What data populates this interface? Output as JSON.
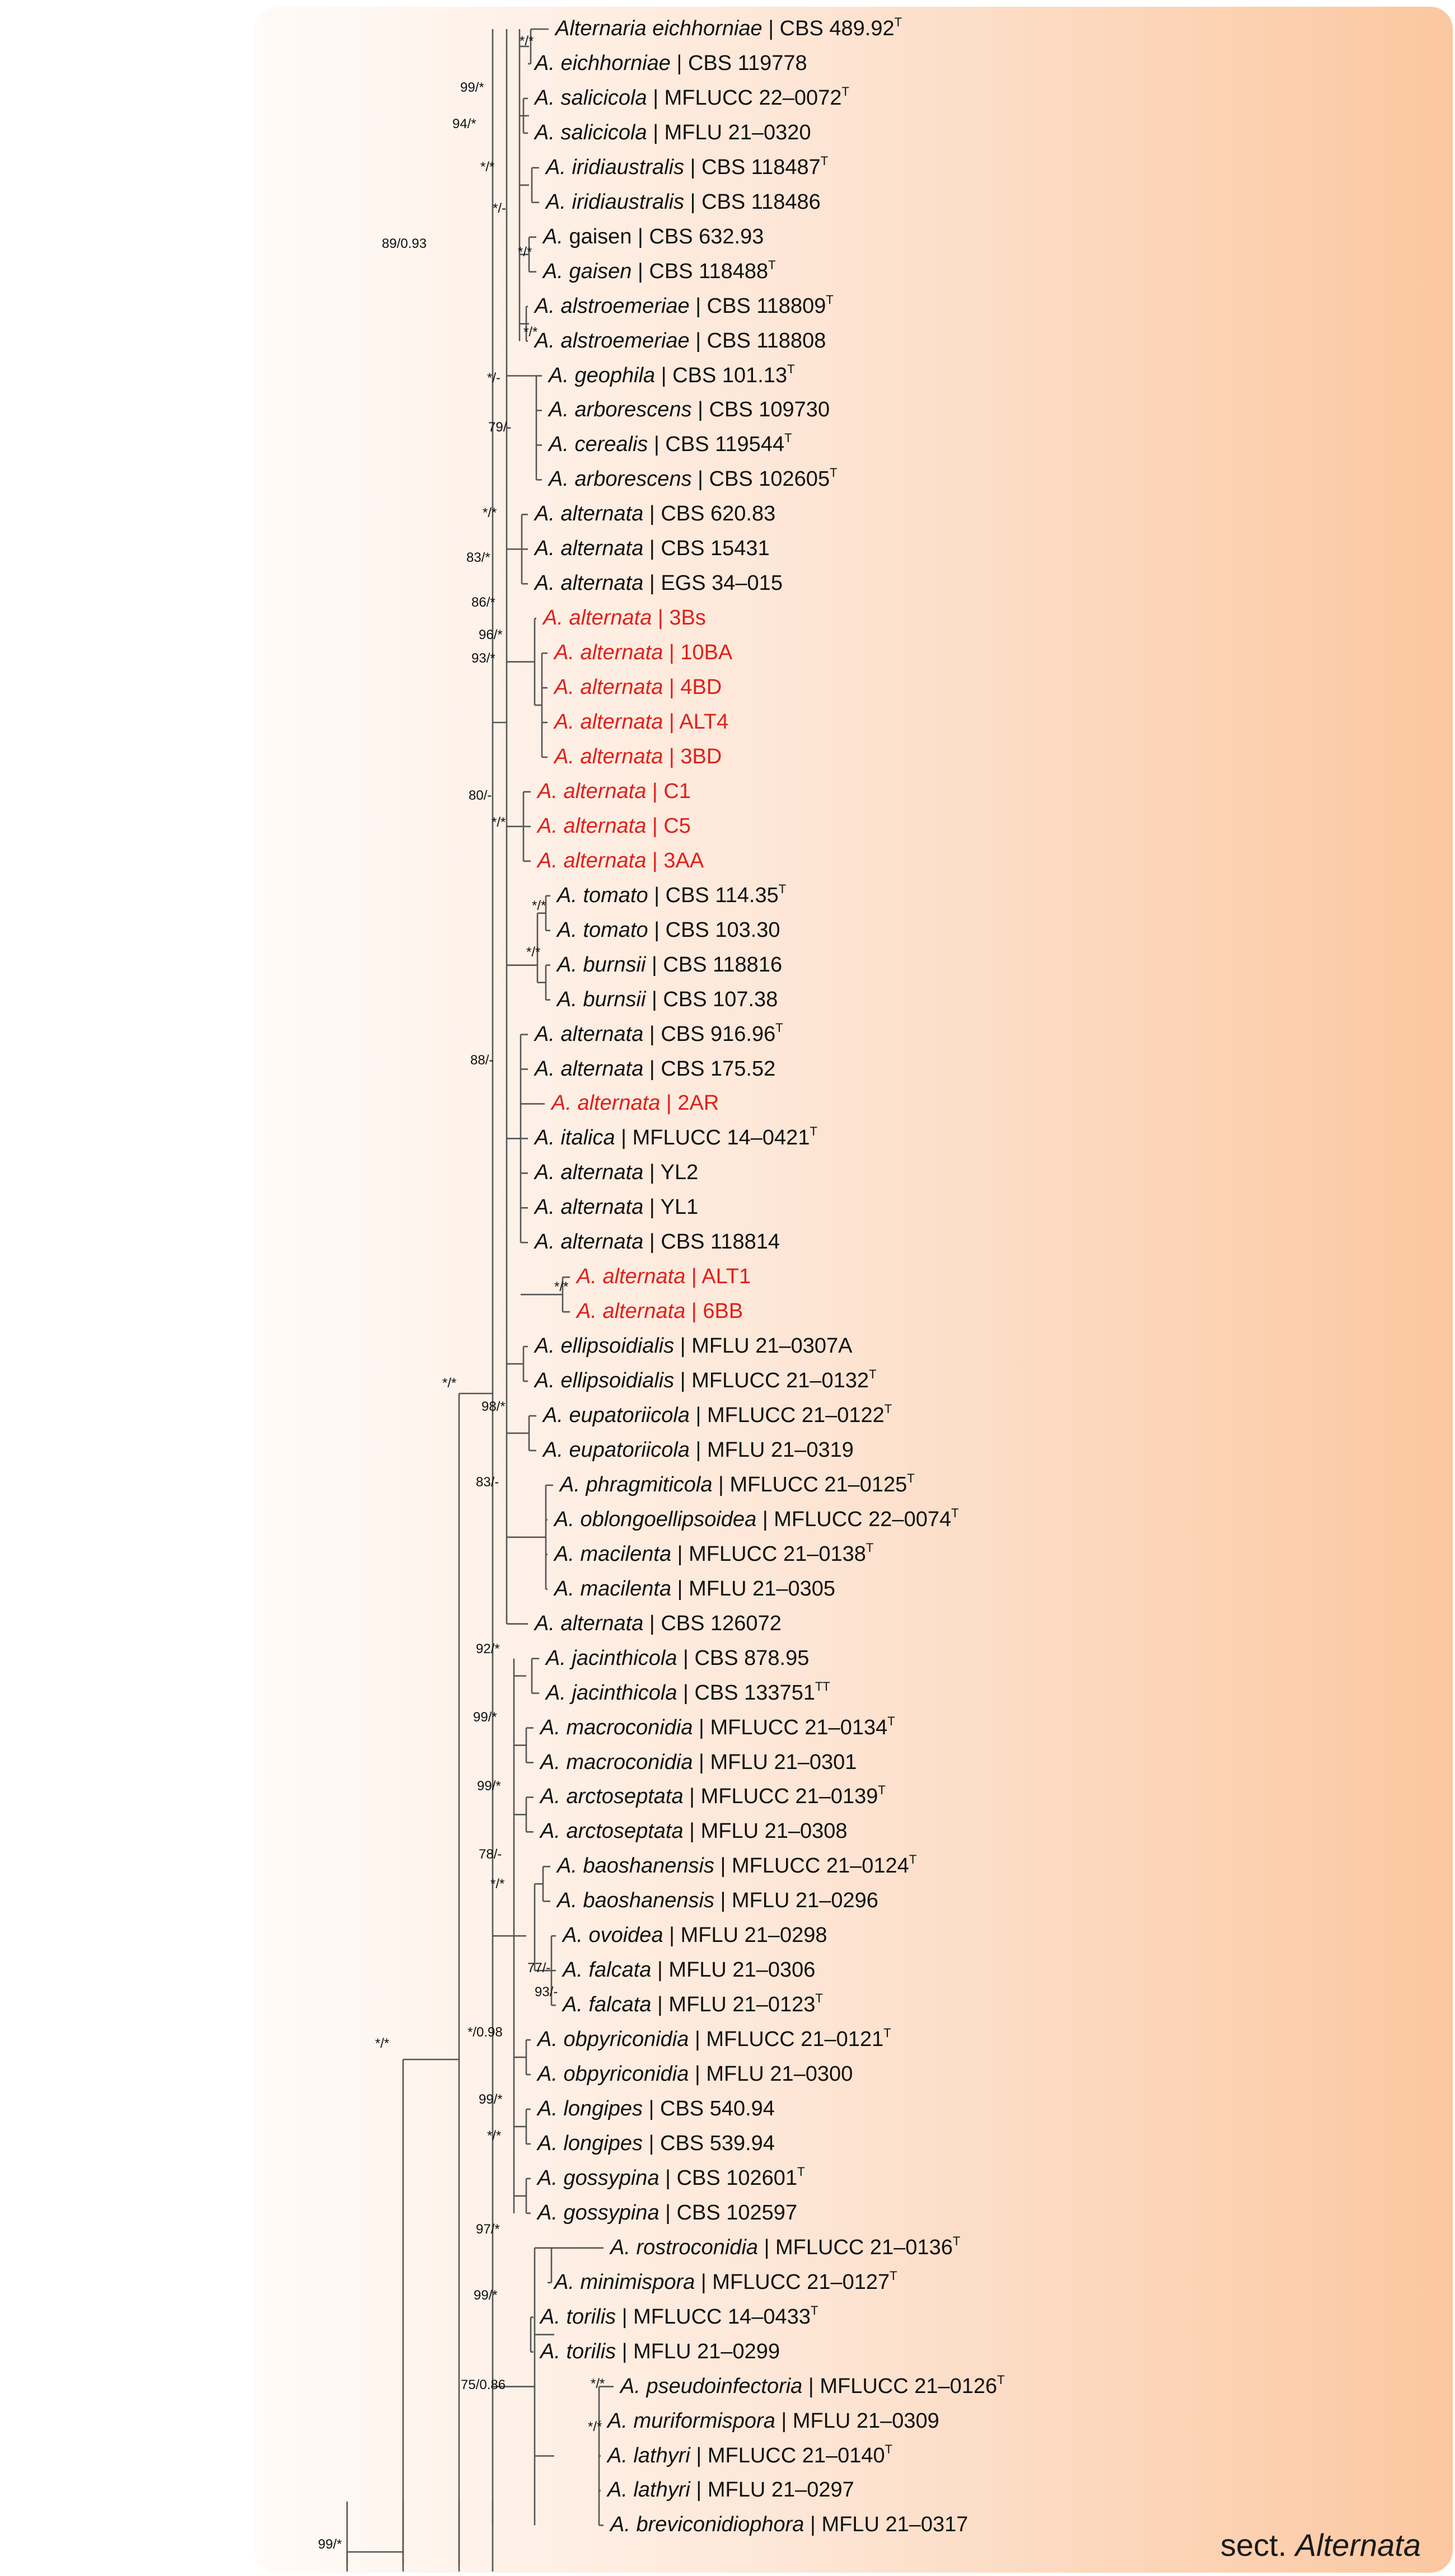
{
  "section_label": {
    "prefix": "sect.",
    "name": "Alternata"
  },
  "colors": {
    "background_start": "#fdf7f3",
    "background_end": "#fbcba5",
    "highlight": "#e0201a",
    "text": "#111111",
    "branch": "#555555"
  },
  "taxa": [
    {
      "species": "Alternaria eichhorniae",
      "strain": "CBS 489.92",
      "mark": "T",
      "highlight": false
    },
    {
      "species": "A. eichhorniae",
      "strain": "CBS 119778",
      "mark": "",
      "highlight": false
    },
    {
      "species": "A. salicicola",
      "strain": "MFLUCC 22–0072",
      "mark": "T",
      "highlight": false
    },
    {
      "species": "A. salicicola",
      "strain": "MFLU 21–0320",
      "mark": "",
      "highlight": false
    },
    {
      "species": "A. iridiaustralis",
      "strain": "CBS 118487",
      "mark": "T",
      "highlight": false
    },
    {
      "species": "A. iridiaustralis",
      "strain": "CBS 118486",
      "mark": "",
      "highlight": false
    },
    {
      "species": "A.",
      "species_plain": "gaisen",
      "strain": "CBS 632.93",
      "mark": "",
      "highlight": false
    },
    {
      "species": "A. gaisen",
      "strain": "CBS 118488",
      "mark": "T",
      "highlight": false
    },
    {
      "species": "A. alstroemeriae",
      "strain": "CBS 118809",
      "mark": "T",
      "highlight": false
    },
    {
      "species": "A. alstroemeriae",
      "strain": "CBS 118808",
      "mark": "",
      "highlight": false
    },
    {
      "species": "A. geophila",
      "strain": "CBS 101.13",
      "mark": "T",
      "highlight": false
    },
    {
      "species": "A. arborescens",
      "strain": "CBS 109730",
      "mark": "",
      "highlight": false
    },
    {
      "species": "A. cerealis",
      "strain": "CBS 119544",
      "mark": "T",
      "highlight": false
    },
    {
      "species": "A. arborescens",
      "strain": "CBS 102605",
      "mark": "T",
      "highlight": false
    },
    {
      "species": "A. alternata",
      "strain": "CBS 620.83",
      "mark": "",
      "highlight": false
    },
    {
      "species": "A. alternata",
      "strain": "CBS 15431",
      "mark": "",
      "highlight": false
    },
    {
      "species": "A. alternata",
      "strain": "EGS 34–015",
      "mark": "",
      "highlight": false
    },
    {
      "species": "A. alternata",
      "strain": "3Bs",
      "mark": "",
      "highlight": true
    },
    {
      "species": "A. alternata",
      "strain": "10BA",
      "mark": "",
      "highlight": true
    },
    {
      "species": "A. alternata",
      "strain": "4BD",
      "mark": "",
      "highlight": true
    },
    {
      "species": "A. alternata",
      "strain": "ALT4",
      "mark": "",
      "highlight": true
    },
    {
      "species": "A. alternata",
      "strain": "3BD",
      "mark": "",
      "highlight": true
    },
    {
      "species": "A. alternata",
      "strain": "C1",
      "mark": "",
      "highlight": true
    },
    {
      "species": "A. alternata",
      "strain": "C5",
      "mark": "",
      "highlight": true
    },
    {
      "species": "A. alternata",
      "strain": "3AA",
      "mark": "",
      "highlight": true
    },
    {
      "species": "A. tomato",
      "strain": "CBS 114.35",
      "mark": "T",
      "highlight": false
    },
    {
      "species": "A. tomato",
      "strain": "CBS 103.30",
      "mark": "",
      "highlight": false
    },
    {
      "species": "A. burnsii",
      "strain": "CBS 118816",
      "mark": "",
      "highlight": false
    },
    {
      "species": "A. burnsii",
      "strain": "CBS 107.38",
      "mark": "",
      "highlight": false
    },
    {
      "species": "A. alternata",
      "strain": "CBS 916.96",
      "mark": "T",
      "highlight": false
    },
    {
      "species": "A. alternata",
      "strain": "CBS 175.52",
      "mark": "",
      "highlight": false
    },
    {
      "species": "A. alternata",
      "strain": "2AR",
      "mark": "",
      "highlight": true
    },
    {
      "species": "A. italica",
      "strain": "MFLUCC 14–0421",
      "mark": "T",
      "highlight": false
    },
    {
      "species": "A. alternata",
      "strain": "YL2",
      "mark": "",
      "highlight": false
    },
    {
      "species": "A. alternata",
      "strain": "YL1",
      "mark": "",
      "highlight": false
    },
    {
      "species": "A. alternata",
      "strain": "CBS 118814",
      "mark": "",
      "highlight": false
    },
    {
      "species": "A. alternata",
      "strain": "ALT1",
      "mark": "",
      "highlight": true
    },
    {
      "species": "A. alternata",
      "strain": "6BB",
      "mark": "",
      "highlight": true
    },
    {
      "species": "A. ellipsoidialis",
      "strain": "MFLU 21–0307A",
      "mark": "",
      "highlight": false
    },
    {
      "species": "A. ellipsoidialis",
      "strain": "MFLUCC 21–0132",
      "mark": "T",
      "highlight": false
    },
    {
      "species": "A. eupatoriicola",
      "strain": "MFLUCC 21–0122",
      "mark": "T",
      "highlight": false
    },
    {
      "species": "A. eupatoriicola",
      "strain": "MFLU 21–0319",
      "mark": "",
      "highlight": false
    },
    {
      "species": "A. phragmiticola",
      "strain": "MFLUCC 21–0125",
      "mark": "T",
      "highlight": false
    },
    {
      "species": "A. oblongoellipsoidea",
      "strain": "MFLUCC 22–0074",
      "mark": "T",
      "highlight": false
    },
    {
      "species": "A. macilenta",
      "strain": "MFLUCC 21–0138",
      "mark": "T",
      "highlight": false
    },
    {
      "species": "A. macilenta",
      "strain": "MFLU 21–0305",
      "mark": "",
      "highlight": false
    },
    {
      "species": "A. alternata",
      "strain": "CBS 126072",
      "mark": "",
      "highlight": false
    },
    {
      "species": "A. jacinthicola",
      "strain": "CBS 878.95",
      "mark": "",
      "highlight": false
    },
    {
      "species": "A. jacinthicola",
      "strain": "CBS 133751",
      "mark": "TT",
      "highlight": false
    },
    {
      "species": "A. macroconidia",
      "strain": "MFLUCC 21–0134",
      "mark": "T",
      "highlight": false
    },
    {
      "species": "A. macroconidia",
      "strain": "MFLU 21–0301",
      "mark": "",
      "highlight": false
    },
    {
      "species": "A. arctoseptata",
      "strain": "MFLUCC 21–0139",
      "mark": "T",
      "highlight": false
    },
    {
      "species": "A. arctoseptata",
      "strain": "MFLU 21–0308",
      "mark": "",
      "highlight": false
    },
    {
      "species": "A. baoshanensis",
      "strain": "MFLUCC 21–0124",
      "mark": "T",
      "highlight": false
    },
    {
      "species": "A. baoshanensis",
      "strain": "MFLU 21–0296",
      "mark": "",
      "highlight": false
    },
    {
      "species": "A. ovoidea",
      "strain": "MFLU 21–0298",
      "mark": "",
      "highlight": false
    },
    {
      "species": "A. falcata",
      "strain": "MFLU 21–0306",
      "mark": "",
      "highlight": false
    },
    {
      "species": "A. falcata",
      "strain": "MFLU 21–0123",
      "mark": "T",
      "highlight": false
    },
    {
      "species": "A. obpyriconidia",
      "strain": "MFLUCC 21–0121",
      "mark": "T",
      "highlight": false
    },
    {
      "species": "A. obpyriconidia",
      "strain": "MFLU 21–0300",
      "mark": "",
      "highlight": false
    },
    {
      "species": "A. longipes",
      "strain": "CBS 540.94",
      "mark": "",
      "highlight": false
    },
    {
      "species": "A. longipes",
      "strain": "CBS 539.94",
      "mark": "",
      "highlight": false
    },
    {
      "species": "A. gossypina",
      "strain": "CBS 102601",
      "mark": "T",
      "highlight": false
    },
    {
      "species": "A. gossypina",
      "strain": "CBS 102597",
      "mark": "",
      "highlight": false
    },
    {
      "species": "A. rostroconidia",
      "strain": "MFLUCC 21–0136",
      "mark": "T",
      "highlight": false
    },
    {
      "species": "A. minimispora",
      "strain": "MFLUCC 21–0127",
      "mark": "T",
      "highlight": false
    },
    {
      "species": "A. torilis",
      "strain": "MFLUCC 14–0433",
      "mark": "T",
      "highlight": false
    },
    {
      "species": "A. torilis",
      "strain": "MFLU 21–0299",
      "mark": "",
      "highlight": false
    },
    {
      "species": "A. pseudoinfectoria",
      "strain": "MFLUCC 21–0126",
      "mark": "T",
      "highlight": false
    },
    {
      "species": "A. muriformispora",
      "strain": "MFLU 21–0309",
      "mark": "",
      "highlight": false
    },
    {
      "species": "A. lathyri",
      "strain": "MFLUCC 21–0140",
      "mark": "T",
      "highlight": false
    },
    {
      "species": "A. lathyri",
      "strain": "MFLU 21–0297",
      "mark": "",
      "highlight": false
    },
    {
      "species": "A. breviconidiophora",
      "strain": "MFLU 21–0317",
      "mark": "",
      "highlight": false
    }
  ],
  "support_values": [
    "*/*",
    "99/*",
    "94/*",
    "*/*",
    "*/-",
    "89/0.93",
    "*/*",
    "*/*",
    "*/-",
    "79/-",
    "*/*",
    "83/*",
    "86/*",
    "96/*",
    "93/*",
    "80/-",
    "*/*",
    "*/*",
    "*/*",
    "88/-",
    "*/*",
    "*/*",
    "98/*",
    "83/-",
    "92/*",
    "99/*",
    "99/*",
    "78/-",
    "*/*",
    "77/-",
    "93/-",
    "*/0.98",
    "99/*",
    "*/*",
    "*/*",
    "97/*",
    "99/*",
    "75/0.86",
    "*/*",
    "*/*",
    "99/*"
  ]
}
